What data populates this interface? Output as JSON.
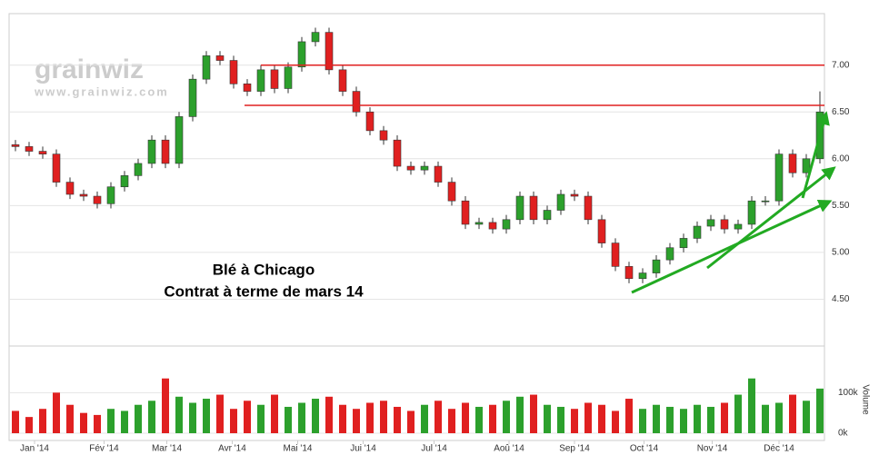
{
  "chart_data": {
    "type": "candlestick",
    "watermark": [
      "grainwiz",
      "www.grainwiz.com"
    ],
    "annotations": [
      "Blé à Chicago",
      "Contrat à terme de mars 14"
    ],
    "up_color": "#2ca02c",
    "down_color": "#e02020",
    "open": [
      6.15,
      6.13,
      6.08,
      6.05,
      5.75,
      5.62,
      5.6,
      5.52,
      5.7,
      5.82,
      5.95,
      6.2,
      5.95,
      6.45,
      6.85,
      7.1,
      7.05,
      6.8,
      6.72,
      6.95,
      6.75,
      6.98,
      7.25,
      7.35,
      6.95,
      6.72,
      6.5,
      6.3,
      6.2,
      5.92,
      5.88,
      5.92,
      5.75,
      5.55,
      5.3,
      5.32,
      5.25,
      5.35,
      5.6,
      5.35,
      5.45,
      5.62,
      5.6,
      5.35,
      5.1,
      4.85,
      4.72,
      4.78,
      4.92,
      5.05,
      5.15,
      5.28,
      5.35,
      5.25,
      5.3,
      5.55,
      5.55,
      6.05,
      5.85,
      6.0
    ],
    "high": [
      6.2,
      6.18,
      6.13,
      6.1,
      5.8,
      5.67,
      5.65,
      5.75,
      5.87,
      6.0,
      6.25,
      6.25,
      6.5,
      6.9,
      7.15,
      7.15,
      7.1,
      6.85,
      7.0,
      7.0,
      7.03,
      7.3,
      7.4,
      7.4,
      7.0,
      6.77,
      6.55,
      6.35,
      6.25,
      5.97,
      5.97,
      5.97,
      5.8,
      5.6,
      5.37,
      5.37,
      5.4,
      5.65,
      5.65,
      5.5,
      5.67,
      5.67,
      5.65,
      5.4,
      5.15,
      4.9,
      4.83,
      4.97,
      5.1,
      5.2,
      5.33,
      5.4,
      5.4,
      5.35,
      5.6,
      5.6,
      6.1,
      6.1,
      6.05,
      6.72
    ],
    "low": [
      6.08,
      6.03,
      6.0,
      5.7,
      5.57,
      5.55,
      5.47,
      5.47,
      5.65,
      5.77,
      5.9,
      5.9,
      5.9,
      6.4,
      6.8,
      7.0,
      6.75,
      6.67,
      6.67,
      6.7,
      6.7,
      6.93,
      7.2,
      6.9,
      6.67,
      6.45,
      6.25,
      6.15,
      5.87,
      5.83,
      5.83,
      5.7,
      5.5,
      5.25,
      5.25,
      5.2,
      5.2,
      5.3,
      5.3,
      5.3,
      5.4,
      5.55,
      5.3,
      5.05,
      4.8,
      4.67,
      4.67,
      4.73,
      4.87,
      5.0,
      5.1,
      5.23,
      5.2,
      5.2,
      5.25,
      5.5,
      5.5,
      5.8,
      5.8,
      5.95
    ],
    "close": [
      6.13,
      6.08,
      6.05,
      5.75,
      5.62,
      5.6,
      5.52,
      5.7,
      5.82,
      5.95,
      6.2,
      5.95,
      6.45,
      6.85,
      7.1,
      7.05,
      6.8,
      6.72,
      6.95,
      6.75,
      6.98,
      7.25,
      7.35,
      6.95,
      6.72,
      6.5,
      6.3,
      6.2,
      5.92,
      5.88,
      5.92,
      5.75,
      5.55,
      5.3,
      5.32,
      5.25,
      5.35,
      5.6,
      5.35,
      5.45,
      5.62,
      5.6,
      5.35,
      5.1,
      4.85,
      4.72,
      4.78,
      4.92,
      5.05,
      5.15,
      5.28,
      5.35,
      5.25,
      5.3,
      5.55,
      5.55,
      6.05,
      5.85,
      6.0,
      6.5
    ],
    "volume": [
      55000,
      40000,
      60000,
      100000,
      70000,
      50000,
      45000,
      60000,
      55000,
      70000,
      80000,
      135000,
      90000,
      75000,
      85000,
      95000,
      60000,
      80000,
      70000,
      95000,
      65000,
      75000,
      85000,
      90000,
      70000,
      60000,
      75000,
      80000,
      65000,
      55000,
      70000,
      80000,
      60000,
      75000,
      65000,
      70000,
      80000,
      90000,
      95000,
      70000,
      65000,
      60000,
      75000,
      70000,
      55000,
      85000,
      60000,
      70000,
      65000,
      60000,
      70000,
      65000,
      75000,
      95000,
      135000,
      70000,
      75000,
      95000,
      80000,
      110000
    ],
    "xticks": [
      {
        "value": 1.4,
        "label": "Jan '14"
      },
      {
        "value": 6.5,
        "label": "Fév '14"
      },
      {
        "value": 11.1,
        "label": "Mar '14"
      },
      {
        "value": 15.9,
        "label": "Avr '14"
      },
      {
        "value": 20.7,
        "label": "Mai '14"
      },
      {
        "value": 25.5,
        "label": "Jui '14"
      },
      {
        "value": 30.7,
        "label": "Jul '14"
      },
      {
        "value": 36.2,
        "label": "Aoû '14"
      },
      {
        "value": 41,
        "label": "Sep '14"
      },
      {
        "value": 46.1,
        "label": "Oct '14"
      },
      {
        "value": 51.1,
        "label": "Nov '14"
      },
      {
        "value": 56,
        "label": "Déc '14"
      }
    ],
    "ylim": [
      4.0,
      7.55
    ],
    "yticks": [
      {
        "value": 4.5,
        "label": "4.50"
      },
      {
        "value": 5,
        "label": "5.00"
      },
      {
        "value": 5.5,
        "label": "5.50"
      },
      {
        "value": 6,
        "label": "6.00"
      },
      {
        "value": 6.5,
        "label": "6.50"
      },
      {
        "value": 7,
        "label": "7.00"
      }
    ],
    "volume_label": "Volume",
    "vlim": [
      0,
      150000
    ],
    "vticks": [
      {
        "value": 0,
        "label": "0k"
      },
      {
        "value": 100000,
        "label": "100k"
      }
    ],
    "hlines": [
      {
        "value": 7.0,
        "from": 18
      },
      {
        "value": 6.57,
        "from": 16.8
      }
    ],
    "hline_color": "#e02020",
    "grid": true
  }
}
